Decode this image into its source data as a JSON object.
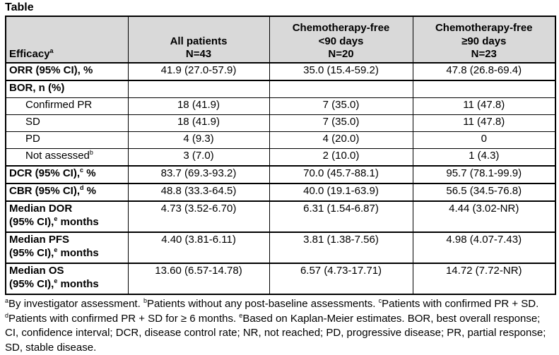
{
  "title": "Table",
  "colors": {
    "header_bg": "#d9d9d9",
    "border": "#000000",
    "text": "#000000",
    "page_bg": "#ffffff"
  },
  "table": {
    "header": {
      "efficacy": {
        "name": "efficacy",
        "parts": [
          {
            "text": "Efficacy"
          },
          {
            "sup": "a"
          }
        ]
      },
      "columns": [
        {
          "name": "all-patients",
          "lines": [
            "All patients",
            "N=43"
          ]
        },
        {
          "name": "chemotherapy-free-lt90-days",
          "lines": [
            "Chemotherapy-free",
            "<90 days",
            "N=20"
          ]
        },
        {
          "name": "chemotherapy-free-ge90-days",
          "lines": [
            "Chemotherapy-free",
            "≥90 days",
            "N=23"
          ]
        }
      ]
    },
    "rows": [
      {
        "name": "orr",
        "bold": true,
        "indent": false,
        "section": true,
        "tall": false,
        "label_parts": [
          {
            "text": "ORR (95% CI), %"
          }
        ],
        "values": [
          "41.9 (27.0-57.9)",
          "35.0 (15.4-59.2)",
          "47.8 (26.8-69.4)"
        ]
      },
      {
        "name": "bor",
        "bold": true,
        "indent": false,
        "section": true,
        "tall": false,
        "label_parts": [
          {
            "text": "BOR, n (%)"
          }
        ],
        "values": [
          "",
          "",
          ""
        ]
      },
      {
        "name": "confirmed-pr",
        "bold": false,
        "indent": true,
        "section": false,
        "tall": false,
        "label_parts": [
          {
            "text": "Confirmed PR"
          }
        ],
        "values": [
          "18 (41.9)",
          "7 (35.0)",
          "11 (47.8)"
        ]
      },
      {
        "name": "sd",
        "bold": false,
        "indent": true,
        "section": false,
        "tall": false,
        "label_parts": [
          {
            "text": "SD"
          }
        ],
        "values": [
          "18 (41.9)",
          "7 (35.0)",
          "11 (47.8)"
        ]
      },
      {
        "name": "pd",
        "bold": false,
        "indent": true,
        "section": false,
        "tall": false,
        "label_parts": [
          {
            "text": "PD"
          }
        ],
        "values": [
          "4 (9.3)",
          "4 (20.0)",
          "0"
        ]
      },
      {
        "name": "not-assessed",
        "bold": false,
        "indent": true,
        "section": false,
        "tall": false,
        "label_parts": [
          {
            "text": "Not assessed"
          },
          {
            "sup": "b"
          }
        ],
        "values": [
          "3 (7.0)",
          "2 (10.0)",
          "1 (4.3)"
        ]
      },
      {
        "name": "dcr",
        "bold": true,
        "indent": false,
        "section": true,
        "tall": false,
        "label_parts": [
          {
            "text": "DCR (95% CI),"
          },
          {
            "sup": "c"
          },
          {
            "text": " %"
          }
        ],
        "values": [
          "83.7 (69.3-93.2)",
          "70.0 (45.7-88.1)",
          "95.7 (78.1-99.9)"
        ]
      },
      {
        "name": "cbr",
        "bold": true,
        "indent": false,
        "section": true,
        "tall": false,
        "label_parts": [
          {
            "text": "CBR (95% CI),"
          },
          {
            "sup": "d"
          },
          {
            "text": " %"
          }
        ],
        "values": [
          "48.8 (33.3-64.5)",
          "40.0 (19.1-63.9)",
          "56.5 (34.5-76.8)"
        ]
      },
      {
        "name": "median-dor",
        "bold": true,
        "indent": false,
        "section": true,
        "tall": true,
        "label_parts": [
          {
            "text": "Median DOR"
          },
          {
            "br": true
          },
          {
            "text": "(95% CI),"
          },
          {
            "sup": "e"
          },
          {
            "text": " months"
          }
        ],
        "values": [
          "4.73 (3.52-6.70)",
          "6.31 (1.54-6.87)",
          "4.44 (3.02-NR)"
        ]
      },
      {
        "name": "median-pfs",
        "bold": true,
        "indent": false,
        "section": true,
        "tall": true,
        "label_parts": [
          {
            "text": "Median PFS"
          },
          {
            "br": true
          },
          {
            "text": "(95% CI),"
          },
          {
            "sup": "e"
          },
          {
            "text": " months"
          }
        ],
        "values": [
          "4.40 (3.81-6.11)",
          "3.81 (1.38-7.56)",
          "4.98 (4.07-7.43)"
        ]
      },
      {
        "name": "median-os",
        "bold": true,
        "indent": false,
        "section": true,
        "tall": true,
        "label_parts": [
          {
            "text": "Median OS"
          },
          {
            "br": true
          },
          {
            "text": "(95% CI),"
          },
          {
            "sup": "e"
          },
          {
            "text": " months"
          }
        ],
        "values": [
          "13.60 (6.57-14.78)",
          "6.57 (4.73-17.71)",
          "14.72 (7.72-NR)"
        ]
      }
    ]
  },
  "footnotes": {
    "parts": [
      {
        "sup": "a"
      },
      {
        "text": "By investigator assessment. "
      },
      {
        "sup": "b"
      },
      {
        "text": "Patients without any post-baseline assessments. "
      },
      {
        "sup": "c"
      },
      {
        "text": "Patients with confirmed PR + SD. "
      },
      {
        "sup": "d"
      },
      {
        "text": "Patients with confirmed PR + SD for ≥ 6 months. "
      },
      {
        "sup": "e"
      },
      {
        "text": "Based on Kaplan-Meier estimates. BOR, best overall response; CI, confidence interval; DCR, disease control rate; NR, not reached; PD, progressive disease; PR, partial response; SD, stable disease."
      }
    ]
  }
}
